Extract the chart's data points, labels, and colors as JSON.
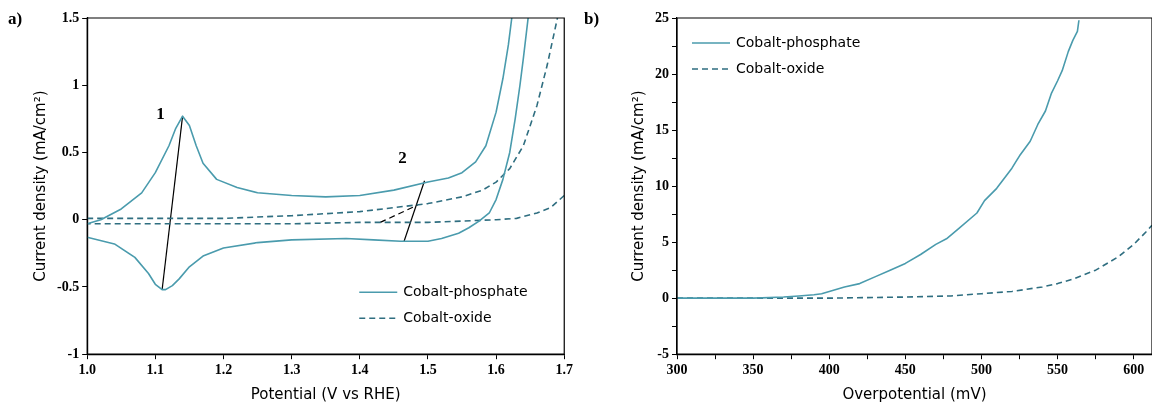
{
  "chart_data": [
    {
      "type": "line",
      "title": "a)",
      "xlabel": "Potential (V vs RHE)",
      "ylabel": "Current density (mA/cm²)",
      "xlim": [
        1.0,
        1.7
      ],
      "ylim": [
        -1,
        1.5
      ],
      "xticks": [
        {
          "value": 1.0,
          "label": "1.0"
        },
        {
          "value": 1.1,
          "label": "1.1"
        },
        {
          "value": 1.2,
          "label": "1.2"
        },
        {
          "value": 1.3,
          "label": "1.3"
        },
        {
          "value": 1.4,
          "label": "1.4"
        },
        {
          "value": 1.5,
          "label": "1.5"
        },
        {
          "value": 1.6,
          "label": "1.6"
        },
        {
          "value": 1.7,
          "label": "1.7"
        }
      ],
      "yticks": [
        -1,
        -0.5,
        0,
        0.5,
        1,
        1.5
      ],
      "grid": false,
      "legend": "bottom right",
      "marker": "none",
      "annotations": [
        {
          "text": "1",
          "x": 1.14,
          "y": 0.77
        },
        {
          "text": "2",
          "x": 1.495,
          "y": 0.29
        }
      ],
      "series": [
        {
          "name": "Cobalt-phosphate",
          "color": "#4a9bad",
          "line_style": "solid",
          "x": [
            1.0,
            1.02,
            1.05,
            1.08,
            1.1,
            1.12,
            1.13,
            1.14,
            1.15,
            1.16,
            1.17,
            1.19,
            1.22,
            1.25,
            1.3,
            1.35,
            1.4,
            1.45,
            1.5,
            1.53,
            1.55,
            1.57,
            1.585,
            1.6,
            1.61,
            1.618,
            1.623,
            null,
            1.647,
            1.64,
            1.635,
            1.628,
            1.62,
            1.61,
            1.6,
            1.59,
            1.575,
            1.56,
            1.545,
            1.52,
            1.5,
            1.46,
            1.42,
            1.38,
            1.3,
            1.25,
            1.2,
            1.17,
            1.15,
            1.135,
            1.125,
            1.115,
            1.11,
            1.1,
            1.09,
            1.07,
            1.04,
            1.0
          ],
          "values": [
            -0.03,
            0.0,
            0.08,
            0.2,
            0.35,
            0.55,
            0.68,
            0.77,
            0.7,
            0.55,
            0.42,
            0.3,
            0.24,
            0.2,
            0.18,
            0.17,
            0.18,
            0.22,
            0.28,
            0.31,
            0.35,
            0.43,
            0.55,
            0.8,
            1.05,
            1.3,
            1.5,
            null,
            1.5,
            1.2,
            1.0,
            0.75,
            0.5,
            0.3,
            0.15,
            0.05,
            -0.01,
            -0.06,
            -0.1,
            -0.14,
            -0.16,
            -0.16,
            -0.15,
            -0.14,
            -0.15,
            -0.17,
            -0.21,
            -0.27,
            -0.35,
            -0.44,
            -0.49,
            -0.52,
            -0.52,
            -0.48,
            -0.4,
            -0.28,
            -0.18,
            -0.13
          ]
        },
        {
          "name": "Cobalt-oxide",
          "color": "#2f6e80",
          "line_style": "dashed",
          "x": [
            1.0,
            1.1,
            1.2,
            1.3,
            1.4,
            1.45,
            1.5,
            1.55,
            1.58,
            1.6,
            1.62,
            1.64,
            1.66,
            1.675,
            1.69,
            null,
            1.7,
            1.68,
            1.66,
            1.63,
            1.6,
            1.55,
            1.5,
            1.4,
            1.3,
            1.2,
            1.1,
            1.0
          ],
          "values": [
            0.01,
            0.01,
            0.01,
            0.03,
            0.06,
            0.09,
            0.12,
            0.17,
            0.22,
            0.28,
            0.38,
            0.55,
            0.85,
            1.15,
            1.5,
            null,
            0.18,
            0.09,
            0.05,
            0.01,
            0.0,
            -0.01,
            -0.02,
            -0.02,
            -0.03,
            -0.03,
            -0.03,
            -0.03
          ]
        },
        {
          "color": "#000000",
          "line_style": "solid",
          "x": [
            1.11,
            1.14
          ],
          "values": [
            -0.52,
            0.77
          ]
        },
        {
          "color": "#000000",
          "line_style": "solid",
          "x": [
            1.465,
            1.495
          ],
          "values": [
            -0.16,
            0.29
          ]
        },
        {
          "color": "#000000",
          "line_style": "dashed",
          "x": [
            1.43,
            1.485
          ],
          "values": [
            -0.02,
            0.11
          ]
        }
      ]
    },
    {
      "type": "line",
      "title": "b)",
      "xlabel": "Overpotential (mV)",
      "ylabel": "Current density (mA/cm²)",
      "xlim": [
        300,
        612
      ],
      "ylim": [
        -5,
        25
      ],
      "xticks": [
        300,
        {
          "value": 325,
          "label": null
        },
        350,
        {
          "value": 375,
          "label": null
        },
        400,
        {
          "value": 425,
          "label": null
        },
        450,
        {
          "value": 475,
          "label": null
        },
        500,
        {
          "value": 525,
          "label": null
        },
        550,
        {
          "value": 575,
          "label": null
        },
        600
      ],
      "yticks": [
        -5,
        {
          "value": -2.5,
          "label": null
        },
        0,
        {
          "value": 2.5,
          "label": null
        },
        5,
        {
          "value": 7.5,
          "label": null
        },
        10,
        {
          "value": 12.5,
          "label": null
        },
        15,
        {
          "value": 17.5,
          "label": null
        },
        20,
        {
          "value": 22.5,
          "label": null
        },
        25
      ],
      "grid": false,
      "legend": "top left",
      "marker": "none",
      "series": [
        {
          "name": "Cobalt-phosphate",
          "color": "#4a9bad",
          "line_style": "solid",
          "x": [
            300,
            330,
            350,
            370,
            380,
            390,
            395,
            400,
            410,
            420,
            430,
            440,
            450,
            460,
            470,
            477,
            485,
            497,
            502,
            510,
            520,
            525,
            532,
            537,
            542,
            546,
            550,
            553,
            557,
            560,
            563,
            564
          ],
          "values": [
            0,
            0,
            0,
            0.1,
            0.2,
            0.3,
            0.4,
            0.6,
            1.0,
            1.3,
            1.9,
            2.5,
            3.1,
            3.9,
            4.8,
            5.3,
            6.2,
            7.6,
            8.7,
            9.8,
            11.6,
            12.7,
            14.0,
            15.5,
            16.7,
            18.3,
            19.4,
            20.3,
            22.0,
            23.0,
            23.8,
            24.8
          ]
        },
        {
          "name": "Cobalt-oxide",
          "color": "#2f6e80",
          "line_style": "dashed",
          "x": [
            300,
            350,
            400,
            450,
            480,
            500,
            520,
            540,
            550,
            560,
            575,
            590,
            600,
            608,
            612
          ],
          "values": [
            0,
            0,
            0,
            0.1,
            0.2,
            0.4,
            0.6,
            1.0,
            1.3,
            1.7,
            2.5,
            3.7,
            4.8,
            5.9,
            6.5
          ]
        }
      ]
    }
  ]
}
